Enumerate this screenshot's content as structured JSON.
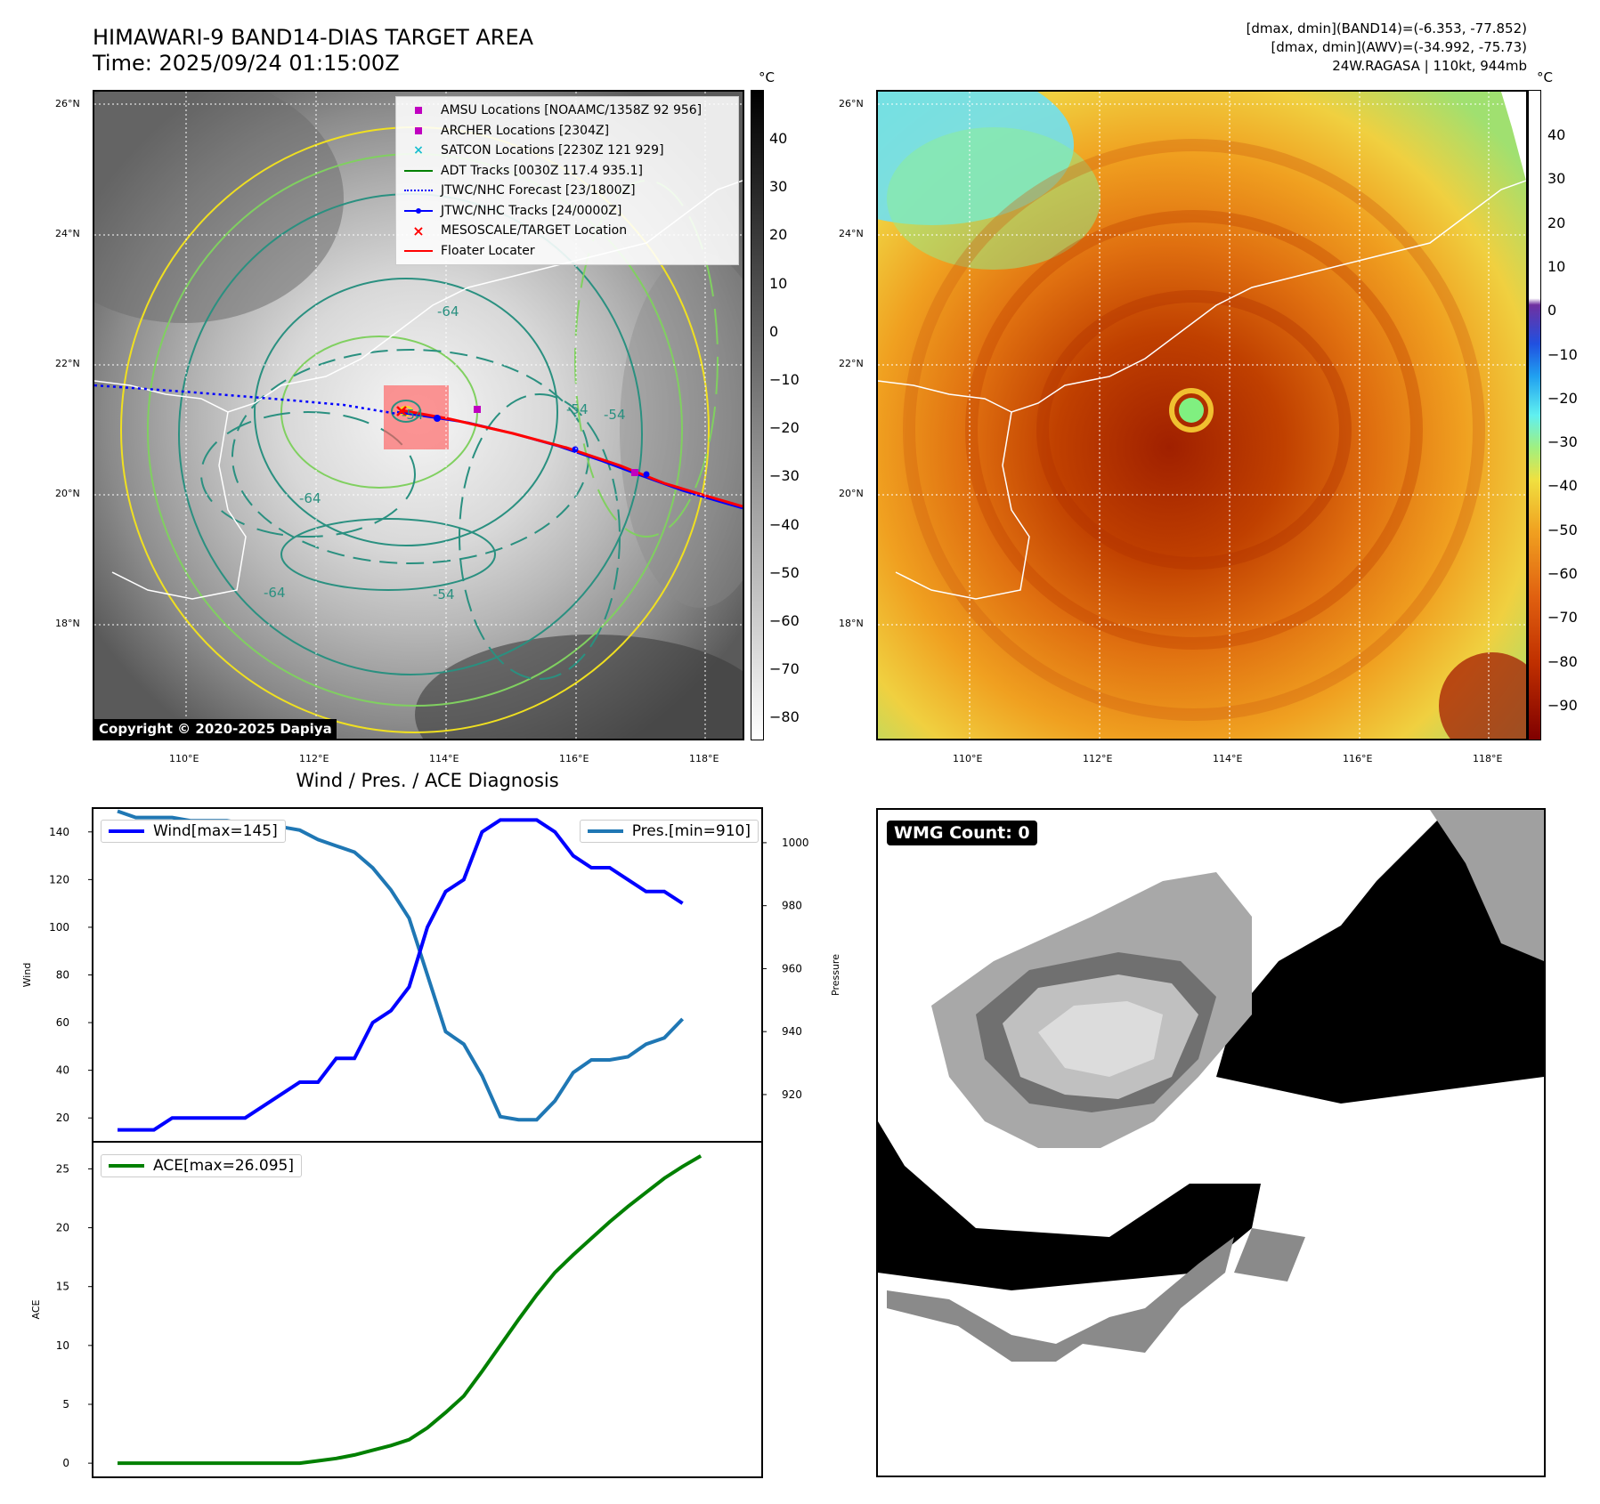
{
  "header": {
    "title_line1": "HIMAWARI-9 BAND14-DIAS TARGET AREA",
    "title_line2": "Time: 2025/09/24 01:15:00Z",
    "info_line1": "[dmax, dmin](BAND14)=(-6.353, -77.852)",
    "info_line2": "[dmax, dmin](AWV)=(-34.992, -75.73)",
    "info_line3": "24W.RAGASA | 110kt, 944mb"
  },
  "map_axes": {
    "lat_ticks": [
      "26°N",
      "24°N",
      "22°N",
      "20°N",
      "18°N"
    ],
    "lon_ticks": [
      "110°E",
      "112°E",
      "114°E",
      "116°E",
      "118°E"
    ]
  },
  "left_map": {
    "colorbar_unit": "°C",
    "colorbar_ticks": [
      "40",
      "30",
      "20",
      "10",
      "0",
      "−10",
      "−20",
      "−30",
      "−40",
      "−50",
      "−60",
      "−70",
      "−80"
    ],
    "contour_labels": [
      "-64",
      "-54",
      "-64",
      "-54",
      "-54",
      "-64",
      "-54"
    ],
    "copyright": "Copyright © 2020-2025 Dapiya",
    "legend": [
      {
        "label": "AMSU Locations [NOAAMC/1358Z 92 956]",
        "icon": "square-marker",
        "color": "#c000c0"
      },
      {
        "label": "ARCHER Locations [2304Z]",
        "icon": "square-marker",
        "color": "#c000c0"
      },
      {
        "label": "SATCON Locations [2230Z 121 929]",
        "icon": "x-marker",
        "color": "#17becf"
      },
      {
        "label": "ADT Tracks [0030Z 117.4 935.1]",
        "icon": "solid-line",
        "color": "#008000"
      },
      {
        "label": "JTWC/NHC Forecast [23/1800Z]",
        "icon": "dotted-line",
        "color": "#0000ff"
      },
      {
        "label": "JTWC/NHC Tracks [24/0000Z]",
        "icon": "line-dot",
        "color": "#0000ff"
      },
      {
        "label": "MESOSCALE/TARGET Location",
        "icon": "x-marker",
        "color": "#ff0000"
      },
      {
        "label": "Floater Locater",
        "icon": "solid-line",
        "color": "#ff0000"
      }
    ]
  },
  "right_map": {
    "colorbar_unit": "°C",
    "colorbar_ticks": [
      "40",
      "30",
      "20",
      "10",
      "0",
      "−10",
      "−20",
      "−30",
      "−40",
      "−50",
      "−60",
      "−70",
      "−80",
      "−90"
    ]
  },
  "diagnosis": {
    "title": "Wind / Pres. / ACE Diagnosis",
    "wind_ylabel": "Wind",
    "pressure_ylabel": "Pressure",
    "ace_ylabel": "ACE",
    "wind_legend": "Wind[max=145]",
    "pressure_legend": "Pres.[min=910]",
    "ace_legend": "ACE[max=26.095]"
  },
  "wmg": {
    "label": "WMG Count: 0"
  },
  "colors": {
    "wind": "#0000ff",
    "pressure": "#1f77b4",
    "ace": "#008000",
    "track_red": "#ff0000",
    "track_blue": "#0000ff"
  },
  "chart_data": [
    {
      "type": "line",
      "title": "Wind / Pres. / ACE Diagnosis",
      "x": [
        0,
        1,
        2,
        3,
        4,
        5,
        6,
        7,
        8,
        9,
        10,
        11,
        12,
        13,
        14,
        15,
        16,
        17,
        18,
        19,
        20,
        21,
        22,
        23,
        24,
        25,
        26,
        27,
        28,
        29,
        30,
        31,
        32,
        33,
        34
      ],
      "series": [
        {
          "name": "Wind[max=145]",
          "axis": "left",
          "values": [
            15,
            15,
            15,
            20,
            20,
            20,
            20,
            20,
            25,
            30,
            35,
            35,
            45,
            45,
            60,
            65,
            75,
            100,
            115,
            120,
            140,
            145,
            145,
            145,
            140,
            130,
            125,
            125,
            120,
            115,
            115,
            110,
            null,
            null,
            null
          ]
        },
        {
          "name": "Pres.[min=910]",
          "axis": "right",
          "values": [
            1010,
            1008,
            1008,
            1008,
            1007,
            1007,
            1007,
            1006,
            1006,
            1005,
            1004,
            1001,
            999,
            997,
            992,
            985,
            976,
            958,
            940,
            936,
            926,
            913,
            912,
            912,
            918,
            927,
            931,
            931,
            932,
            936,
            938,
            944,
            null,
            null,
            null
          ]
        }
      ],
      "ylabel_left": "Wind",
      "ylabel_right": "Pressure",
      "ylim_left": [
        10,
        150
      ],
      "yticks_left": [
        20,
        40,
        60,
        80,
        100,
        120,
        140
      ],
      "ylim_right": [
        905,
        1011
      ],
      "yticks_right": [
        920,
        940,
        960,
        980,
        1000
      ],
      "legend_left": "upper left",
      "legend_right": "upper right"
    },
    {
      "type": "line",
      "series": [
        {
          "name": "ACE[max=26.095]",
          "values": [
            0,
            0,
            0,
            0,
            0,
            0,
            0,
            0,
            0,
            0,
            0,
            0.2,
            0.4,
            0.7,
            1.1,
            1.5,
            2.0,
            3.0,
            4.3,
            5.7,
            7.8,
            10.0,
            12.2,
            14.3,
            16.2,
            17.7,
            19.1,
            20.5,
            21.8,
            23.0,
            24.2,
            25.2,
            26.1
          ]
        }
      ],
      "ylabel": "ACE",
      "ylim": [
        -1.2,
        27.3
      ],
      "yticks": [
        0,
        5,
        10,
        15,
        20,
        25
      ],
      "legend": "upper left"
    }
  ]
}
